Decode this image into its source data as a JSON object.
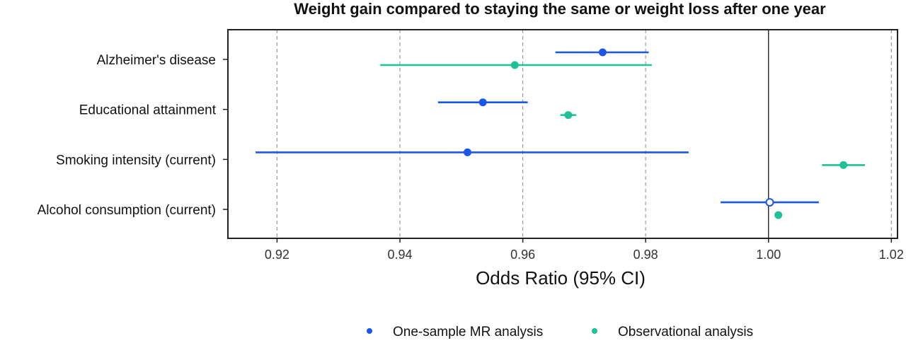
{
  "chart_data": {
    "type": "scatter",
    "subtype": "forest-plot",
    "title": "Weight gain compared to staying the same or weight loss after one year",
    "xlabel": "Odds Ratio (95% CI)",
    "ylabel": "",
    "xlim": [
      0.912,
      1.021
    ],
    "xticks": [
      0.92,
      0.94,
      0.96,
      0.98,
      1.0,
      1.02
    ],
    "xtick_labels": [
      "0.92",
      "0.94",
      "0.96",
      "0.98",
      "1.00",
      "1.02"
    ],
    "reference_line": 1.0,
    "grid": "vertical dashed",
    "legend_position": "bottom",
    "categories": [
      "Alzheimer's disease",
      "Educational attainment",
      "Smoking intensity (current)",
      "Alcohol consumption (current)"
    ],
    "series": [
      {
        "name": "One-sample MR analysis",
        "color": "#1a56e8",
        "estimates": [
          0.973,
          0.9535,
          0.951,
          1.0002
        ],
        "lower": [
          0.9653,
          0.9462,
          0.9165,
          0.9922
        ],
        "upper": [
          0.9805,
          0.9608,
          0.987,
          1.0082
        ],
        "open_marker": [
          false,
          false,
          false,
          true
        ]
      },
      {
        "name": "Observational analysis",
        "color": "#1fc196",
        "estimates": [
          0.9587,
          0.9674,
          1.0122,
          1.0016
        ],
        "lower": [
          0.9368,
          0.9661,
          1.0087,
          1.0013
        ],
        "upper": [
          0.981,
          0.9687,
          1.0157,
          1.0019
        ],
        "open_marker": [
          false,
          false,
          false,
          false
        ]
      }
    ]
  }
}
